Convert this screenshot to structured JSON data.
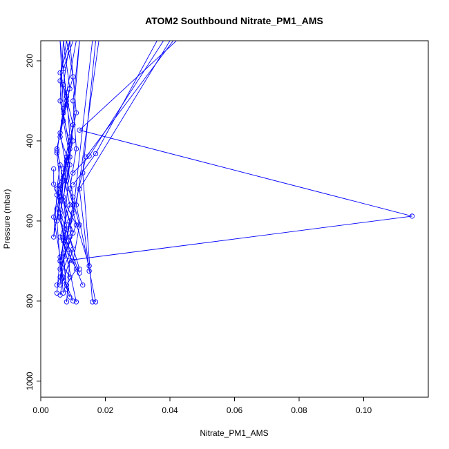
{
  "chart_data": {
    "type": "line",
    "title": "ATOM2 Southbound Nitrate_PM1_AMS",
    "xlabel": "Nitrate_PM1_AMS",
    "ylabel": "Pressure (mbar)",
    "xlim": [
      0,
      0.12
    ],
    "ylim": [
      1040,
      150
    ],
    "y_reversed": true,
    "grid": false,
    "x_ticks": [
      0.0,
      0.02,
      0.04,
      0.06,
      0.08,
      0.1
    ],
    "x_tick_labels": [
      "0.00",
      "0.02",
      "0.04",
      "0.06",
      "0.08",
      "0.10"
    ],
    "y_ticks": [
      200,
      400,
      600,
      800,
      1000
    ],
    "y_tick_labels": [
      "200",
      "400",
      "600",
      "800",
      "1000"
    ],
    "series_color": "#0000ff",
    "marker": "open-circle",
    "series": [
      {
        "x": [
          0.009,
          0.006,
          0.008,
          0.01,
          0.007,
          0.009,
          0.006,
          0.011,
          0.008,
          0.01
        ],
        "y": [
          150,
          230,
          310,
          400,
          480,
          560,
          640,
          720,
          760,
          800
        ]
      },
      {
        "x": [
          0.008,
          0.006,
          0.007,
          0.009,
          0.005,
          0.008,
          0.006,
          0.007
        ],
        "y": [
          150,
          250,
          350,
          440,
          520,
          610,
          700,
          780
        ]
      },
      {
        "x": [
          0.007,
          0.009,
          0.006,
          0.008,
          0.007,
          0.01,
          0.006,
          0.009
        ],
        "y": [
          150,
          270,
          380,
          470,
          550,
          630,
          720,
          790
        ]
      },
      {
        "x": [
          0.01,
          0.007,
          0.008,
          0.006,
          0.009,
          0.007,
          0.008,
          0.006,
          0.009
        ],
        "y": [
          150,
          220,
          300,
          390,
          460,
          540,
          620,
          700,
          740
        ]
      },
      {
        "x": [
          0.006,
          0.008,
          0.005,
          0.007,
          0.006,
          0.009,
          0.005
        ],
        "y": [
          150,
          290,
          420,
          500,
          590,
          680,
          760
        ]
      },
      {
        "x": [
          0.009,
          0.007,
          0.01,
          0.008,
          0.006,
          0.011,
          0.007,
          0.008
        ],
        "y": [
          150,
          260,
          360,
          450,
          530,
          610,
          690,
          770
        ]
      },
      {
        "x": [
          0.008,
          0.01,
          0.007,
          0.009,
          0.008,
          0.006,
          0.01,
          0.007
        ],
        "y": [
          150,
          240,
          330,
          420,
          500,
          580,
          670,
          750
        ]
      },
      {
        "x": [
          0.007,
          0.006,
          0.009,
          0.007,
          0.005,
          0.008,
          0.006
        ],
        "y": [
          150,
          300,
          410,
          490,
          570,
          660,
          740
        ]
      },
      {
        "x": [
          0.011,
          0.008,
          0.009,
          0.007,
          0.01,
          0.008,
          0.012
        ],
        "y": [
          150,
          280,
          390,
          470,
          560,
          650,
          730
        ]
      },
      {
        "x": [
          0.006,
          0.007,
          0.005,
          0.006,
          0.004,
          0.006,
          0.005
        ],
        "y": [
          150,
          320,
          430,
          510,
          590,
          690,
          780
        ]
      },
      {
        "x": [
          0.012,
          0.01,
          0.011,
          0.009,
          0.012,
          0.01,
          0.013
        ],
        "y": [
          150,
          300,
          420,
          520,
          610,
          700,
          760
        ]
      },
      {
        "x": [
          0.009,
          0.011,
          0.008,
          0.01,
          0.009,
          0.012
        ],
        "y": [
          150,
          330,
          450,
          540,
          640,
          720
        ]
      },
      {
        "x": [
          0.018,
          0.011,
          0.017
        ],
        "y": [
          150,
          560,
          802
        ]
      },
      {
        "x": [
          0.016,
          0.01,
          0.015
        ],
        "y": [
          150,
          580,
          712
        ]
      },
      {
        "x": [
          0.017,
          0.013,
          0.016
        ],
        "y": [
          150,
          480,
          802
        ]
      },
      {
        "x": [
          0.04,
          0.012,
          0.015
        ],
        "y": [
          150,
          520,
          725
        ]
      },
      {
        "x": [
          0.041,
          0.014,
          0.009
        ],
        "y": [
          150,
          440,
          620
        ]
      },
      {
        "x": [
          0.042,
          0.012,
          0.115,
          0.009,
          0.008
        ],
        "y": [
          150,
          373,
          588,
          698,
          802
        ]
      },
      {
        "x": [
          0.036,
          0.017,
          0.01
        ],
        "y": [
          150,
          432,
          510
        ]
      },
      {
        "x": [
          0.038,
          0.015,
          0.01
        ],
        "y": [
          150,
          438,
          480
        ]
      },
      {
        "x": [
          0.012,
          0.007,
          0.011
        ],
        "y": [
          150,
          650,
          802
        ]
      },
      {
        "x": [
          0.004,
          0.004,
          0.005,
          0.004,
          0.006
        ],
        "y": [
          470,
          508,
          535,
          640,
          540
        ]
      },
      {
        "x": [
          0.005,
          0.006,
          0.005,
          0.006,
          0.007,
          0.006
        ],
        "y": [
          425,
          460,
          520,
          580,
          640,
          760
        ]
      },
      {
        "x": [
          0.007,
          0.005,
          0.006,
          0.007,
          0.006
        ],
        "y": [
          500,
          600,
          700,
          740,
          785
        ]
      },
      {
        "x": [
          0.008,
          0.006,
          0.009,
          0.007,
          0.008
        ],
        "y": [
          440,
          520,
          600,
          680,
          770
        ]
      }
    ]
  }
}
